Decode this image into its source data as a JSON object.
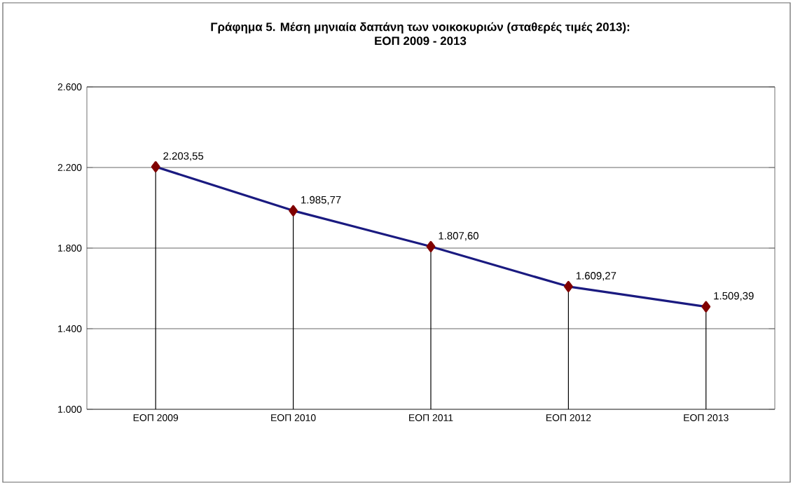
{
  "chart_data": {
    "type": "line",
    "title": "Γράφημα 5. Μέση μηνιαία δαπάνη των νοικοκυριών (σταθερές τιμές 2013):",
    "subtitle": "ΕΟΠ 2009 - 2013",
    "categories": [
      "ΕΟΠ 2009",
      "ΕΟΠ 2010",
      "ΕΟΠ 2011",
      "ΕΟΠ 2012",
      "ΕΟΠ 2013"
    ],
    "series": [
      {
        "color": "#1a1a80",
        "values": [
          2203.55,
          1985.77,
          1807.6,
          1609.27,
          1509.39
        ],
        "value_labels": [
          "2.203,55",
          "1.985,77",
          "1.807,60",
          "1.609,27",
          "1.509,39"
        ]
      }
    ],
    "ylim": [
      1000,
      2600
    ],
    "yticks": [
      {
        "value": 1000,
        "label": "1.000"
      },
      {
        "value": 1400,
        "label": "1.400"
      },
      {
        "value": 1800,
        "label": "1.800"
      },
      {
        "value": 2200,
        "label": "2.200"
      },
      {
        "value": 2600,
        "label": "2.600"
      }
    ],
    "grid": "y",
    "marker": "diamond"
  }
}
